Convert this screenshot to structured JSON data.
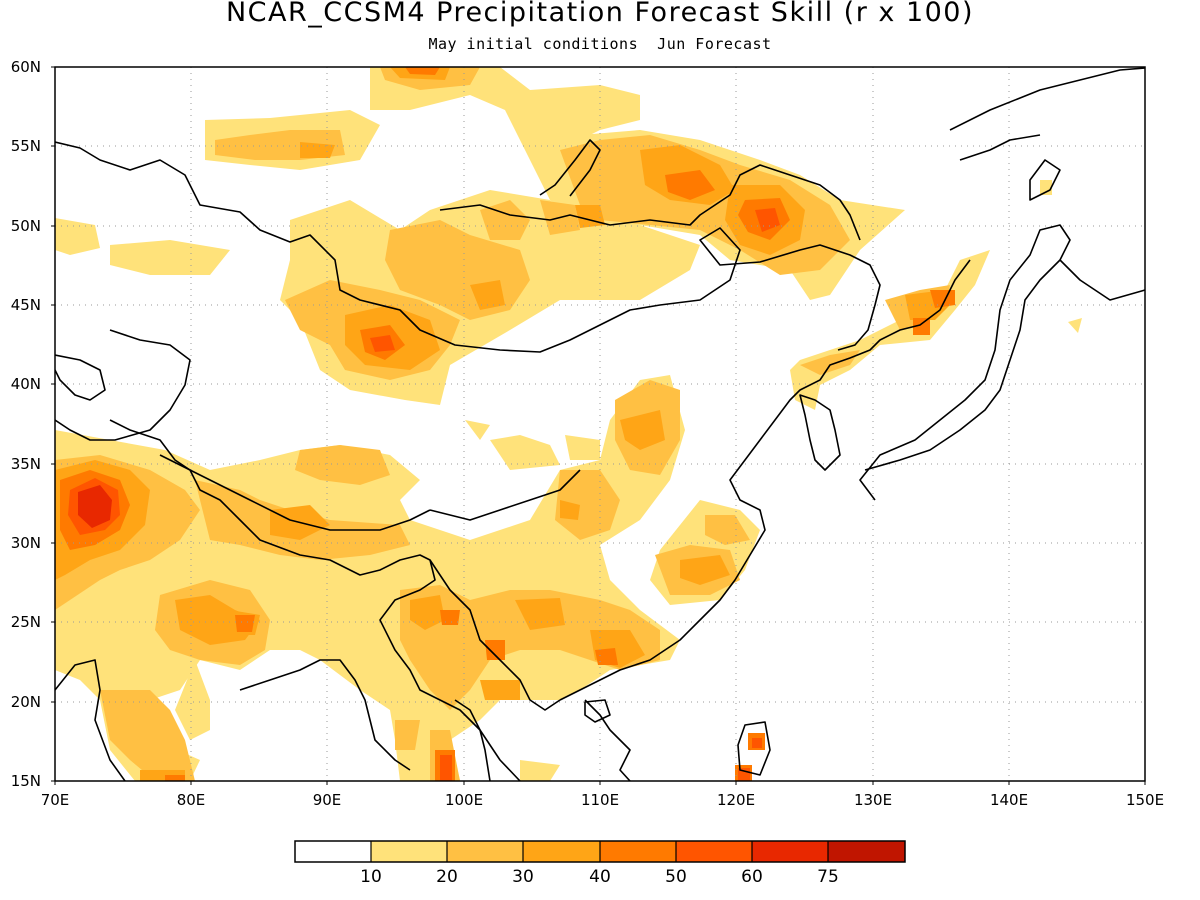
{
  "title": "NCAR_CCSM4 Precipitation Forecast Skill (r x 100)",
  "subtitle": "May initial conditions  Jun Forecast",
  "lat_labels": [
    "60N",
    "55N",
    "50N",
    "45N",
    "40N",
    "35N",
    "30N",
    "25N",
    "20N",
    "15N"
  ],
  "lon_labels": [
    "70E",
    "80E",
    "90E",
    "100E",
    "110E",
    "120E",
    "130E",
    "140E",
    "150E"
  ],
  "colorbar": {
    "colors": [
      "#ffffff",
      "#ffe27a",
      "#ffc043",
      "#ffa516",
      "#ff7a00",
      "#ff5500",
      "#e82800",
      "#c01500",
      "#9b0000"
    ],
    "labels": [
      "10",
      "20",
      "30",
      "40",
      "50",
      "60",
      "75"
    ]
  }
}
